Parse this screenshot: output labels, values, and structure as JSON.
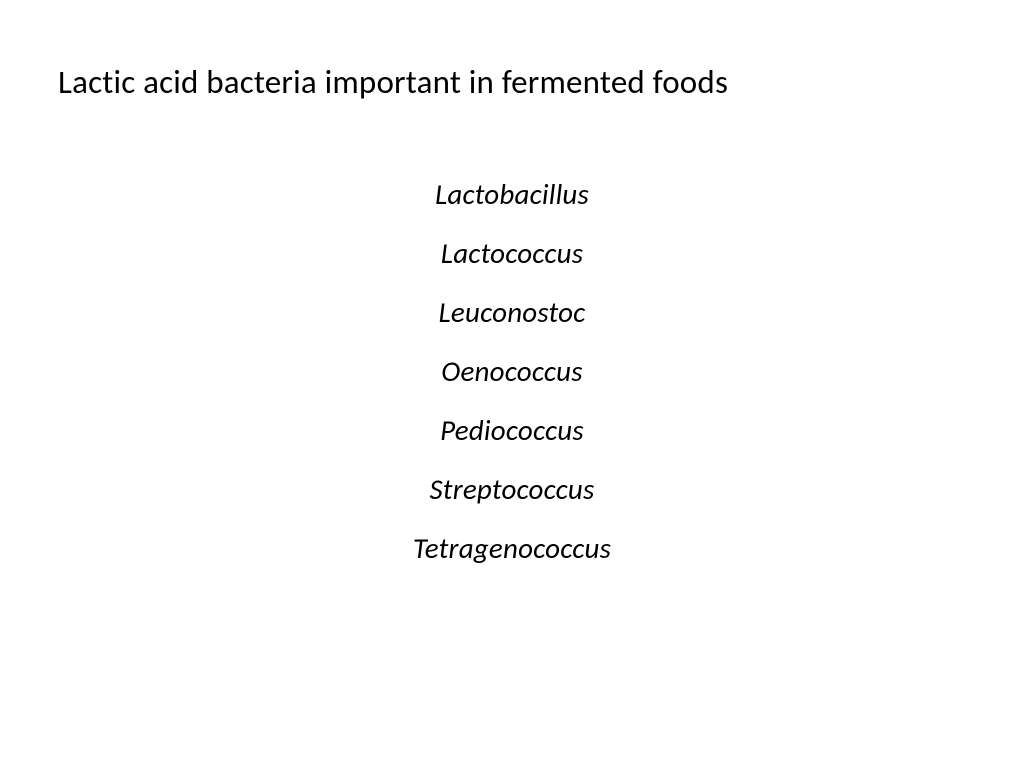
{
  "slide": {
    "title": "Lactic acid bacteria important in fermented foods",
    "items": [
      "Lactobacillus",
      "Lactococcus",
      "Leuconostoc",
      "Oenococcus",
      "Pediococcus",
      "Streptococcus",
      "Tetragenococcus"
    ],
    "background_color": "#ffffff",
    "text_color": "#000000",
    "title_fontsize": 33,
    "item_fontsize": 29,
    "item_style": "italic",
    "font_family": "Calibri"
  }
}
